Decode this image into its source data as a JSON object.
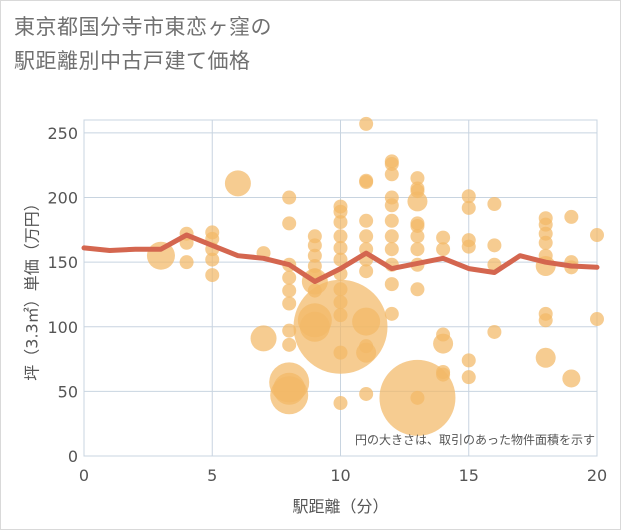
{
  "title_lines": [
    "東京都国分寺市東恋ヶ窪の",
    "駅距離別中古戸建て価格"
  ],
  "chart_data": {
    "type": "scatter",
    "xlabel": "駅距離（分）",
    "ylabel": "坪（3.3㎡）単価（万円）",
    "xlim": [
      0,
      20
    ],
    "ylim": [
      0,
      260
    ],
    "x_ticks": [
      0,
      5,
      10,
      15,
      20
    ],
    "y_ticks": [
      0,
      50,
      100,
      150,
      200,
      250
    ],
    "grid": true,
    "annotation": "円の大きさは、取引のあった物件面積を示す",
    "colors": {
      "bubble": "#f2b866",
      "line": "#d4664f",
      "grid": "#c8d4e0",
      "text": "#555555"
    },
    "bubbles": [
      {
        "x": 3,
        "y": 155,
        "r": 14
      },
      {
        "x": 4,
        "y": 172,
        "r": 7
      },
      {
        "x": 4,
        "y": 165,
        "r": 7
      },
      {
        "x": 4,
        "y": 150,
        "r": 7
      },
      {
        "x": 5,
        "y": 173,
        "r": 7
      },
      {
        "x": 5,
        "y": 168,
        "r": 7
      },
      {
        "x": 5,
        "y": 160,
        "r": 7
      },
      {
        "x": 5,
        "y": 152,
        "r": 7
      },
      {
        "x": 5,
        "y": 140,
        "r": 7
      },
      {
        "x": 6,
        "y": 211,
        "r": 13
      },
      {
        "x": 7,
        "y": 157,
        "r": 7
      },
      {
        "x": 7,
        "y": 91,
        "r": 13
      },
      {
        "x": 8,
        "y": 200,
        "r": 7
      },
      {
        "x": 8,
        "y": 180,
        "r": 7
      },
      {
        "x": 8,
        "y": 148,
        "r": 7
      },
      {
        "x": 8,
        "y": 138,
        "r": 7
      },
      {
        "x": 8,
        "y": 128,
        "r": 7
      },
      {
        "x": 8,
        "y": 118,
        "r": 7
      },
      {
        "x": 8,
        "y": 97,
        "r": 7
      },
      {
        "x": 8,
        "y": 86,
        "r": 7
      },
      {
        "x": 8,
        "y": 57,
        "r": 20
      },
      {
        "x": 8,
        "y": 52,
        "r": 16
      },
      {
        "x": 8,
        "y": 47,
        "r": 19
      },
      {
        "x": 9,
        "y": 170,
        "r": 7
      },
      {
        "x": 9,
        "y": 163,
        "r": 7
      },
      {
        "x": 9,
        "y": 155,
        "r": 7
      },
      {
        "x": 9,
        "y": 147,
        "r": 7
      },
      {
        "x": 9,
        "y": 140,
        "r": 7
      },
      {
        "x": 9,
        "y": 135,
        "r": 13
      },
      {
        "x": 9,
        "y": 128,
        "r": 7
      },
      {
        "x": 9,
        "y": 105,
        "r": 17
      },
      {
        "x": 9,
        "y": 100,
        "r": 15
      },
      {
        "x": 10,
        "y": 193,
        "r": 7
      },
      {
        "x": 10,
        "y": 189,
        "r": 7
      },
      {
        "x": 10,
        "y": 181,
        "r": 7
      },
      {
        "x": 10,
        "y": 170,
        "r": 7
      },
      {
        "x": 10,
        "y": 161,
        "r": 7
      },
      {
        "x": 10,
        "y": 152,
        "r": 7
      },
      {
        "x": 10,
        "y": 141,
        "r": 7
      },
      {
        "x": 10,
        "y": 129,
        "r": 7
      },
      {
        "x": 10,
        "y": 119,
        "r": 7
      },
      {
        "x": 10,
        "y": 109,
        "r": 7
      },
      {
        "x": 10,
        "y": 100,
        "r": 47
      },
      {
        "x": 10,
        "y": 80,
        "r": 7
      },
      {
        "x": 10,
        "y": 41,
        "r": 7
      },
      {
        "x": 11,
        "y": 257,
        "r": 7
      },
      {
        "x": 11,
        "y": 213,
        "r": 7
      },
      {
        "x": 11,
        "y": 212,
        "r": 7
      },
      {
        "x": 11,
        "y": 182,
        "r": 7
      },
      {
        "x": 11,
        "y": 170,
        "r": 7
      },
      {
        "x": 11,
        "y": 160,
        "r": 7
      },
      {
        "x": 11,
        "y": 152,
        "r": 7
      },
      {
        "x": 11,
        "y": 143,
        "r": 7
      },
      {
        "x": 11,
        "y": 104,
        "r": 14
      },
      {
        "x": 11,
        "y": 85,
        "r": 7
      },
      {
        "x": 11,
        "y": 80,
        "r": 10
      },
      {
        "x": 11,
        "y": 48,
        "r": 7
      },
      {
        "x": 12,
        "y": 228,
        "r": 7
      },
      {
        "x": 12,
        "y": 226,
        "r": 7
      },
      {
        "x": 12,
        "y": 218,
        "r": 7
      },
      {
        "x": 12,
        "y": 200,
        "r": 7
      },
      {
        "x": 12,
        "y": 194,
        "r": 7
      },
      {
        "x": 12,
        "y": 182,
        "r": 7
      },
      {
        "x": 12,
        "y": 170,
        "r": 7
      },
      {
        "x": 12,
        "y": 160,
        "r": 7
      },
      {
        "x": 12,
        "y": 148,
        "r": 7
      },
      {
        "x": 12,
        "y": 133,
        "r": 7
      },
      {
        "x": 12,
        "y": 110,
        "r": 7
      },
      {
        "x": 13,
        "y": 215,
        "r": 7
      },
      {
        "x": 13,
        "y": 207,
        "r": 7
      },
      {
        "x": 13,
        "y": 205,
        "r": 7
      },
      {
        "x": 13,
        "y": 197,
        "r": 10
      },
      {
        "x": 13,
        "y": 180,
        "r": 7
      },
      {
        "x": 13,
        "y": 178,
        "r": 7
      },
      {
        "x": 13,
        "y": 170,
        "r": 7
      },
      {
        "x": 13,
        "y": 160,
        "r": 7
      },
      {
        "x": 13,
        "y": 148,
        "r": 7
      },
      {
        "x": 13,
        "y": 129,
        "r": 7
      },
      {
        "x": 13,
        "y": 45,
        "r": 38
      },
      {
        "x": 13,
        "y": 45,
        "r": 7
      },
      {
        "x": 14,
        "y": 169,
        "r": 7
      },
      {
        "x": 14,
        "y": 160,
        "r": 7
      },
      {
        "x": 14,
        "y": 94,
        "r": 7
      },
      {
        "x": 14,
        "y": 87,
        "r": 10
      },
      {
        "x": 14,
        "y": 65,
        "r": 7
      },
      {
        "x": 14,
        "y": 63,
        "r": 7
      },
      {
        "x": 15,
        "y": 201,
        "r": 7
      },
      {
        "x": 15,
        "y": 192,
        "r": 7
      },
      {
        "x": 15,
        "y": 167,
        "r": 7
      },
      {
        "x": 15,
        "y": 162,
        "r": 7
      },
      {
        "x": 15,
        "y": 74,
        "r": 7
      },
      {
        "x": 15,
        "y": 61,
        "r": 7
      },
      {
        "x": 16,
        "y": 195,
        "r": 7
      },
      {
        "x": 16,
        "y": 163,
        "r": 7
      },
      {
        "x": 16,
        "y": 148,
        "r": 7
      },
      {
        "x": 16,
        "y": 96,
        "r": 7
      },
      {
        "x": 18,
        "y": 184,
        "r": 7
      },
      {
        "x": 18,
        "y": 179,
        "r": 7
      },
      {
        "x": 18,
        "y": 172,
        "r": 7
      },
      {
        "x": 18,
        "y": 165,
        "r": 7
      },
      {
        "x": 18,
        "y": 155,
        "r": 7
      },
      {
        "x": 18,
        "y": 147,
        "r": 10
      },
      {
        "x": 18,
        "y": 110,
        "r": 7
      },
      {
        "x": 18,
        "y": 105,
        "r": 7
      },
      {
        "x": 18,
        "y": 76,
        "r": 10
      },
      {
        "x": 19,
        "y": 185,
        "r": 7
      },
      {
        "x": 19,
        "y": 150,
        "r": 7
      },
      {
        "x": 19,
        "y": 146,
        "r": 7
      },
      {
        "x": 19,
        "y": 60,
        "r": 9
      },
      {
        "x": 20,
        "y": 171,
        "r": 7
      },
      {
        "x": 20,
        "y": 106,
        "r": 7
      }
    ],
    "trend": [
      {
        "x": 0,
        "y": 161
      },
      {
        "x": 1,
        "y": 159
      },
      {
        "x": 2,
        "y": 160
      },
      {
        "x": 3,
        "y": 160
      },
      {
        "x": 4,
        "y": 171
      },
      {
        "x": 5,
        "y": 163
      },
      {
        "x": 6,
        "y": 155
      },
      {
        "x": 7,
        "y": 153
      },
      {
        "x": 8,
        "y": 148
      },
      {
        "x": 9,
        "y": 135
      },
      {
        "x": 10,
        "y": 145
      },
      {
        "x": 11,
        "y": 157
      },
      {
        "x": 12,
        "y": 145
      },
      {
        "x": 13,
        "y": 149
      },
      {
        "x": 14,
        "y": 153
      },
      {
        "x": 15,
        "y": 145
      },
      {
        "x": 16,
        "y": 142
      },
      {
        "x": 17,
        "y": 155
      },
      {
        "x": 18,
        "y": 150
      },
      {
        "x": 19,
        "y": 147
      },
      {
        "x": 20,
        "y": 146
      }
    ]
  }
}
